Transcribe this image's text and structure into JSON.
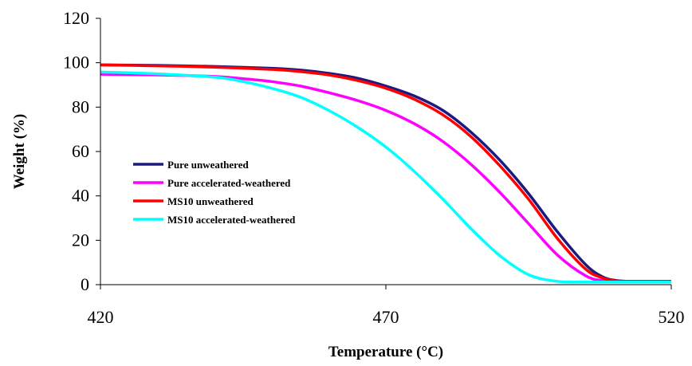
{
  "chart_data": {
    "type": "line",
    "title": "",
    "xlabel": "Temperature (°C)",
    "ylabel": "Weight (%)",
    "xlim": [
      420,
      520
    ],
    "ylim": [
      0,
      120
    ],
    "xticks": [
      420,
      470,
      520
    ],
    "yticks": [
      0,
      20,
      40,
      60,
      80,
      100,
      120
    ],
    "grid": false,
    "legend_position": "center-left",
    "series": [
      {
        "name": "Pure unweathered",
        "color": "#1a1a80",
        "x": [
          420,
          430,
          440,
          450,
          455,
          460,
          465,
          470,
          475,
          480,
          485,
          490,
          495,
          500,
          505,
          508,
          510,
          512,
          515,
          520
        ],
        "y": [
          99,
          98.8,
          98.3,
          97.5,
          96.7,
          95.2,
          93,
          89.5,
          85,
          78.5,
          68.5,
          56,
          41,
          24,
          9,
          3.5,
          2,
          1.5,
          1.5,
          1.5
        ]
      },
      {
        "name": "Pure accelerated-weathered",
        "color": "#ff00ff",
        "x": [
          420,
          430,
          440,
          445,
          450,
          455,
          460,
          465,
          470,
          475,
          480,
          485,
          490,
          495,
          500,
          505,
          508,
          510,
          515,
          520
        ],
        "y": [
          94.8,
          94.5,
          93.8,
          92.8,
          91.5,
          89.5,
          86.5,
          83,
          78.5,
          72.5,
          64.5,
          54,
          41.5,
          27.5,
          13.5,
          4,
          1.8,
          1.4,
          1.3,
          1.3
        ]
      },
      {
        "name": "MS10 unweathered",
        "color": "#ff0000",
        "x": [
          420,
          430,
          440,
          450,
          455,
          460,
          465,
          470,
          475,
          480,
          485,
          490,
          495,
          500,
          505,
          508,
          510,
          512,
          515,
          520
        ],
        "y": [
          99,
          98.6,
          98,
          97,
          96,
          94.5,
          92,
          88.5,
          83.5,
          76.5,
          66.5,
          53.5,
          38.5,
          21,
          7,
          3,
          1.8,
          1.5,
          1.5,
          1.5
        ]
      },
      {
        "name": "MS10 accelerated-weathered",
        "color": "#00ffff",
        "x": [
          420,
          430,
          440,
          445,
          450,
          455,
          460,
          465,
          470,
          475,
          480,
          485,
          490,
          495,
          500,
          505,
          510,
          515,
          520
        ],
        "y": [
          95.8,
          95,
          93.5,
          91.5,
          88.5,
          84.5,
          78.5,
          71,
          62,
          51,
          38.5,
          25,
          13,
          4.5,
          1.5,
          1.2,
          1.2,
          1.2,
          1.2
        ]
      }
    ]
  }
}
